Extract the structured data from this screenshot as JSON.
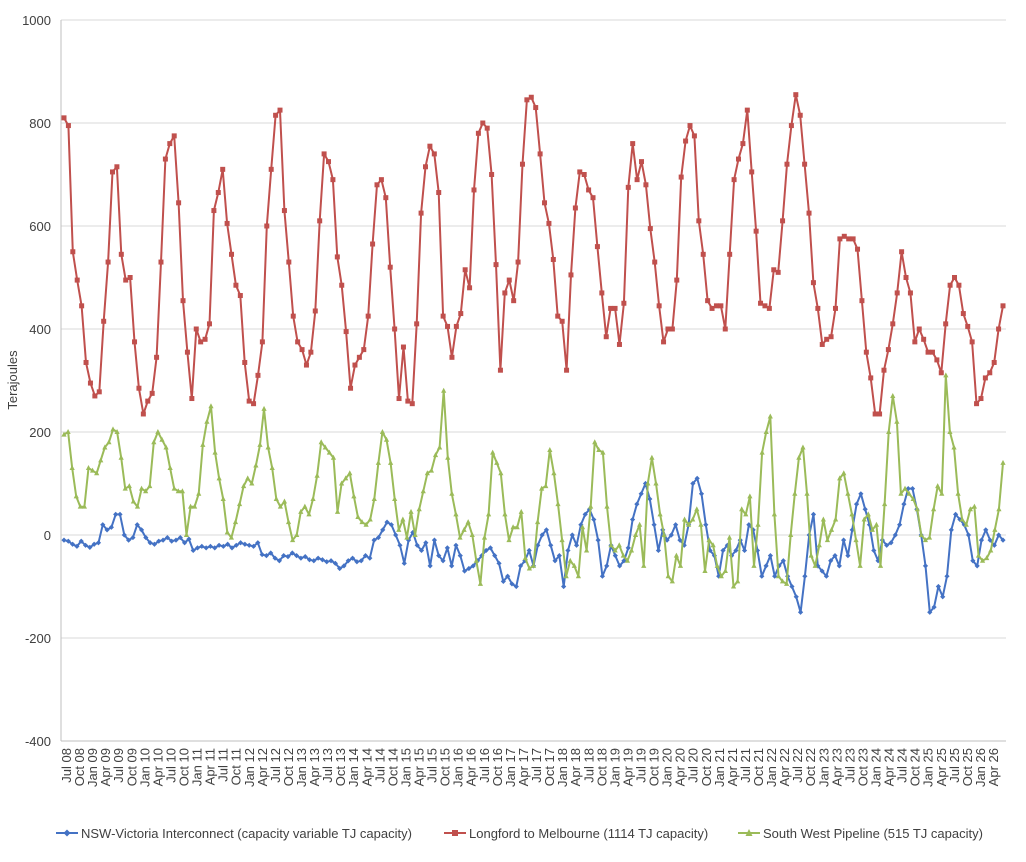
{
  "chart_data": {
    "type": "line",
    "ylabel": "Terajoules",
    "ylim": [
      -400,
      1000
    ],
    "yticks": [
      -400,
      -200,
      0,
      200,
      400,
      600,
      800,
      1000
    ],
    "grid": "horizontal",
    "legend_position": "bottom",
    "x_tick_labels": [
      "Jul 08",
      "Oct 08",
      "Jan 09",
      "Apr 09",
      "Jul 09",
      "Oct 09",
      "Jan 10",
      "Apr 10",
      "Jul 10",
      "Oct 10",
      "Jan 11",
      "Apr 11",
      "Jul 11",
      "Oct 11",
      "Jan 12",
      "Apr 12",
      "Jul 12",
      "Oct 12",
      "Jan 13",
      "Apr 13",
      "Jul 13",
      "Oct 13",
      "Jan 14",
      "Apr 14",
      "Jul 14",
      "Oct 14",
      "Jan 15",
      "Apr 15",
      "Jul 15",
      "Oct 15",
      "Jan 16",
      "Apr 16",
      "Jul 16",
      "Oct 16",
      "Jan 17",
      "Apr 17",
      "Jul 17",
      "Oct 17",
      "Jan 18",
      "Apr 18",
      "Jul 18",
      "Oct 18",
      "Jan 19",
      "Apr 19",
      "Jul 19",
      "Oct 19",
      "Jan 20",
      "Apr 20",
      "Jul 20",
      "Oct 20",
      "Jan 21",
      "Apr 21",
      "Jul 21",
      "Oct 21",
      "Jan 22",
      "Apr 22",
      "Jul 22",
      "Oct 22",
      "Jan 23",
      "Apr 23",
      "Jul 23",
      "Oct 23",
      "Jan 24",
      "Apr 24",
      "Jul 24",
      "Oct 24",
      "Jan 25",
      "Apr 25",
      "Jul 25",
      "Oct 25",
      "Jan 26",
      "Apr 26"
    ],
    "series": [
      {
        "name": "NSW-Victoria Interconnect (capacity variable TJ capacity)",
        "color": "#4472C4",
        "marker": "diamond",
        "values": [
          -10,
          -12,
          -18,
          -22,
          -12,
          -20,
          -24,
          -18,
          -15,
          20,
          10,
          15,
          40,
          40,
          0,
          -10,
          -5,
          20,
          10,
          -5,
          -15,
          -18,
          -12,
          -10,
          -5,
          -12,
          -10,
          -5,
          -15,
          -8,
          -30,
          -25,
          -22,
          -25,
          -22,
          -25,
          -20,
          -22,
          -18,
          -25,
          -20,
          -15,
          -18,
          -20,
          -22,
          -15,
          -38,
          -40,
          -35,
          -45,
          -50,
          -40,
          -42,
          -35,
          -40,
          -45,
          -42,
          -48,
          -50,
          -45,
          -48,
          -52,
          -50,
          -55,
          -65,
          -60,
          -50,
          -45,
          -52,
          -50,
          -40,
          -45,
          -10,
          -5,
          10,
          25,
          20,
          0,
          -20,
          -55,
          -10,
          5,
          -20,
          -30,
          -15,
          -60,
          -10,
          -40,
          -50,
          -25,
          -60,
          -20,
          -40,
          -70,
          -65,
          -60,
          -50,
          -40,
          -30,
          -25,
          -40,
          -55,
          -90,
          -80,
          -95,
          -100,
          -60,
          -50,
          -30,
          -60,
          -20,
          0,
          10,
          -20,
          -50,
          -40,
          -100,
          -30,
          0,
          -20,
          20,
          40,
          50,
          30,
          -10,
          -80,
          -60,
          -20,
          -40,
          -60,
          -50,
          -25,
          30,
          60,
          80,
          100,
          70,
          20,
          -30,
          10,
          -10,
          0,
          20,
          -10,
          -20,
          20,
          100,
          110,
          80,
          20,
          -30,
          -40,
          -80,
          -30,
          -20,
          -40,
          -30,
          -10,
          -30,
          20,
          10,
          -30,
          -80,
          -60,
          -40,
          -80,
          -60,
          -50,
          -80,
          -100,
          -120,
          -150,
          -80,
          0,
          40,
          -60,
          -70,
          -80,
          -50,
          -40,
          -60,
          -10,
          -40,
          10,
          60,
          80,
          50,
          20,
          -30,
          -50,
          -10,
          -20,
          -15,
          0,
          20,
          60,
          90,
          90,
          50,
          0,
          -60,
          -150,
          -140,
          -100,
          -120,
          -80,
          10,
          40,
          30,
          20,
          0,
          -50,
          -60,
          -10,
          10,
          -10,
          -20,
          0,
          -10
        ]
      },
      {
        "name": "Longford to Melbourne (1114 TJ capacity)",
        "color": "#C0504D",
        "marker": "square",
        "values": [
          810,
          795,
          550,
          495,
          445,
          335,
          295,
          270,
          278,
          415,
          530,
          705,
          715,
          545,
          495,
          500,
          375,
          285,
          235,
          260,
          275,
          345,
          530,
          730,
          760,
          775,
          645,
          455,
          355,
          265,
          400,
          375,
          380,
          410,
          630,
          665,
          710,
          605,
          545,
          485,
          465,
          335,
          260,
          255,
          310,
          375,
          600,
          710,
          815,
          825,
          630,
          530,
          425,
          375,
          360,
          330,
          355,
          435,
          610,
          740,
          725,
          690,
          540,
          485,
          395,
          285,
          330,
          345,
          360,
          425,
          565,
          680,
          690,
          655,
          520,
          400,
          265,
          365,
          260,
          255,
          410,
          625,
          715,
          755,
          740,
          665,
          425,
          405,
          345,
          405,
          430,
          515,
          480,
          670,
          780,
          800,
          790,
          700,
          525,
          320,
          470,
          495,
          455,
          530,
          720,
          845,
          850,
          830,
          740,
          645,
          605,
          535,
          425,
          415,
          320,
          505,
          635,
          705,
          700,
          670,
          655,
          560,
          470,
          385,
          440,
          440,
          370,
          450,
          675,
          760,
          690,
          725,
          680,
          595,
          530,
          445,
          375,
          400,
          400,
          495,
          695,
          765,
          795,
          775,
          610,
          545,
          455,
          440,
          445,
          445,
          400,
          545,
          690,
          730,
          760,
          825,
          705,
          590,
          450,
          445,
          440,
          515,
          510,
          610,
          720,
          795,
          855,
          815,
          720,
          625,
          490,
          440,
          370,
          380,
          385,
          440,
          575,
          580,
          575,
          575,
          555,
          455,
          355,
          305,
          235,
          235,
          320,
          360,
          410,
          470,
          550,
          500,
          470,
          375,
          400,
          380,
          355,
          355,
          340,
          315,
          410,
          485,
          500,
          485,
          430,
          405,
          375,
          255,
          265,
          305,
          315,
          335,
          400,
          445
        ]
      },
      {
        "name": "South West Pipeline (515 TJ capacity)",
        "color": "#9BBB59",
        "marker": "triangle",
        "values": [
          195,
          200,
          130,
          75,
          55,
          55,
          130,
          125,
          120,
          145,
          170,
          180,
          205,
          200,
          150,
          90,
          95,
          65,
          55,
          90,
          85,
          95,
          180,
          200,
          185,
          170,
          130,
          90,
          85,
          85,
          0,
          55,
          55,
          80,
          175,
          220,
          250,
          160,
          110,
          70,
          5,
          -5,
          25,
          60,
          95,
          110,
          100,
          135,
          175,
          245,
          170,
          130,
          70,
          55,
          65,
          25,
          -10,
          0,
          45,
          55,
          40,
          70,
          115,
          180,
          170,
          160,
          150,
          45,
          100,
          110,
          120,
          75,
          35,
          25,
          20,
          30,
          70,
          140,
          200,
          185,
          140,
          70,
          10,
          30,
          -5,
          45,
          0,
          50,
          85,
          120,
          125,
          155,
          170,
          280,
          150,
          80,
          40,
          -5,
          10,
          25,
          0,
          -50,
          -95,
          -5,
          40,
          160,
          140,
          120,
          40,
          -10,
          15,
          15,
          45,
          -45,
          -65,
          -60,
          25,
          90,
          95,
          165,
          120,
          60,
          -10,
          -80,
          -50,
          -60,
          -80,
          15,
          -30,
          55,
          180,
          165,
          160,
          55,
          -20,
          -30,
          -20,
          -40,
          -50,
          -30,
          0,
          20,
          -60,
          100,
          150,
          100,
          40,
          0,
          -80,
          -90,
          -40,
          -60,
          30,
          20,
          30,
          50,
          20,
          -70,
          -10,
          -20,
          -60,
          -80,
          -70,
          -5,
          -100,
          -90,
          50,
          40,
          75,
          -60,
          20,
          160,
          200,
          230,
          40,
          -80,
          -90,
          -95,
          0,
          80,
          150,
          170,
          80,
          -40,
          -60,
          -20,
          30,
          -10,
          10,
          30,
          110,
          120,
          80,
          40,
          -10,
          -60,
          30,
          40,
          10,
          20,
          -60,
          60,
          200,
          270,
          220,
          80,
          90,
          80,
          70,
          50,
          0,
          -10,
          -5,
          50,
          95,
          80,
          310,
          200,
          170,
          80,
          30,
          20,
          50,
          55,
          -40,
          -50,
          -45,
          -30,
          10,
          50,
          140
        ]
      }
    ]
  }
}
